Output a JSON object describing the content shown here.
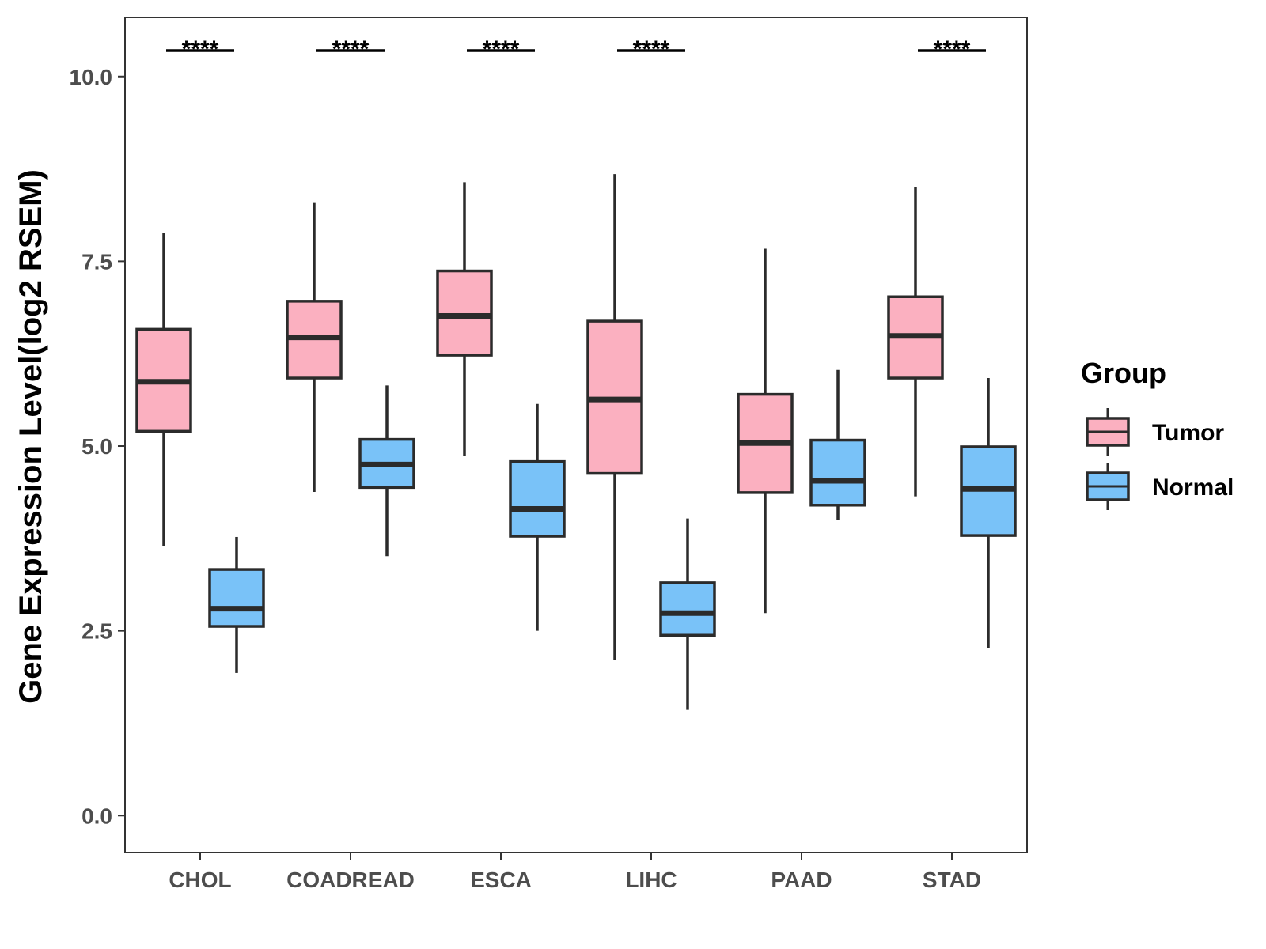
{
  "chart_data": {
    "type": "boxplot",
    "title": "",
    "xlabel": "",
    "ylabel": "Gene Expression Level(log2 RSEM)",
    "ylim": [
      -0.5,
      10.8
    ],
    "yticks": [
      0.0,
      2.5,
      5.0,
      7.5,
      10.0
    ],
    "ytick_labels": [
      "0.0",
      "2.5",
      "5.0",
      "7.5",
      "10.0"
    ],
    "categories": [
      "CHOL",
      "COADREAD",
      "ESCA",
      "LIHC",
      "PAAD",
      "STAD"
    ],
    "groups": [
      {
        "name": "Tumor",
        "color": "#fbb0c0"
      },
      {
        "name": "Normal",
        "color": "#79c2f8"
      }
    ],
    "boxes": [
      {
        "category": "CHOL",
        "group": "Tumor",
        "min": 3.65,
        "q1": 5.2,
        "median": 5.87,
        "q3": 6.58,
        "max": 7.88
      },
      {
        "category": "CHOL",
        "group": "Normal",
        "min": 1.93,
        "q1": 2.56,
        "median": 2.8,
        "q3": 3.33,
        "max": 3.77
      },
      {
        "category": "COADREAD",
        "group": "Tumor",
        "min": 4.38,
        "q1": 5.92,
        "median": 6.47,
        "q3": 6.96,
        "max": 8.29
      },
      {
        "category": "COADREAD",
        "group": "Normal",
        "min": 3.51,
        "q1": 4.44,
        "median": 4.75,
        "q3": 5.09,
        "max": 5.82
      },
      {
        "category": "ESCA",
        "group": "Tumor",
        "min": 4.87,
        "q1": 6.23,
        "median": 6.76,
        "q3": 7.37,
        "max": 8.57
      },
      {
        "category": "ESCA",
        "group": "Normal",
        "min": 2.5,
        "q1": 3.78,
        "median": 4.15,
        "q3": 4.79,
        "max": 5.57
      },
      {
        "category": "LIHC",
        "group": "Tumor",
        "min": 2.1,
        "q1": 4.63,
        "median": 5.63,
        "q3": 6.69,
        "max": 8.68
      },
      {
        "category": "LIHC",
        "group": "Normal",
        "min": 1.43,
        "q1": 2.44,
        "median": 2.74,
        "q3": 3.15,
        "max": 4.02
      },
      {
        "category": "PAAD",
        "group": "Tumor",
        "min": 2.74,
        "q1": 4.37,
        "median": 5.04,
        "q3": 5.7,
        "max": 7.67
      },
      {
        "category": "PAAD",
        "group": "Normal",
        "min": 4.0,
        "q1": 4.2,
        "median": 4.53,
        "q3": 5.08,
        "max": 6.03
      },
      {
        "category": "STAD",
        "group": "Tumor",
        "min": 4.32,
        "q1": 5.92,
        "median": 6.49,
        "q3": 7.02,
        "max": 8.51
      },
      {
        "category": "STAD",
        "group": "Normal",
        "min": 2.27,
        "q1": 3.79,
        "median": 4.42,
        "q3": 4.99,
        "max": 5.92
      }
    ],
    "significance": [
      {
        "category": "CHOL",
        "label": "****"
      },
      {
        "category": "COADREAD",
        "label": "****"
      },
      {
        "category": "ESCA",
        "label": "****"
      },
      {
        "category": "LIHC",
        "label": "****"
      },
      {
        "category": "STAD",
        "label": "****"
      }
    ],
    "significance_level": 10.35,
    "legend": {
      "title": "Group",
      "position": "right",
      "entries": [
        "Tumor",
        "Normal"
      ]
    }
  }
}
